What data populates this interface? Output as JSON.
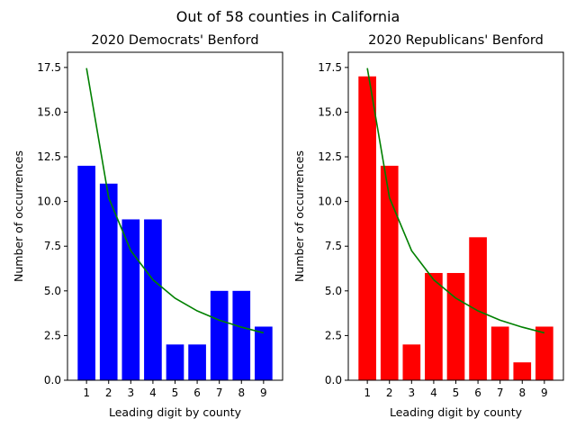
{
  "suptitle": "Out of 58 counties in California",
  "chart_data": [
    {
      "type": "bar",
      "title": "2020 Democrats' Benford",
      "xlabel": "Leading digit by county",
      "ylabel": "Number of occurrences",
      "categories": [
        "1",
        "2",
        "3",
        "4",
        "5",
        "6",
        "7",
        "8",
        "9"
      ],
      "series": [
        {
          "values": [
            12,
            11,
            9,
            9,
            2,
            2,
            5,
            5,
            3
          ],
          "color": "#0000ff",
          "kind": "bar"
        },
        {
          "values": [
            17.46,
            10.21,
            7.25,
            5.62,
            4.59,
            3.88,
            3.36,
            2.97,
            2.65
          ],
          "color": "#008000",
          "kind": "line"
        }
      ],
      "yticks": [
        "0.0",
        "2.5",
        "5.0",
        "7.5",
        "10.0",
        "12.5",
        "15.0",
        "17.5"
      ],
      "ylim": [
        0,
        18.35
      ],
      "grid": false
    },
    {
      "type": "bar",
      "title": "2020 Republicans' Benford",
      "xlabel": "Leading digit by county",
      "ylabel": "Number of occurrences",
      "categories": [
        "1",
        "2",
        "3",
        "4",
        "5",
        "6",
        "7",
        "8",
        "9"
      ],
      "series": [
        {
          "values": [
            17,
            12,
            2,
            6,
            6,
            8,
            3,
            1,
            3
          ],
          "color": "#ff0000",
          "kind": "bar"
        },
        {
          "values": [
            17.46,
            10.21,
            7.25,
            5.62,
            4.59,
            3.88,
            3.36,
            2.97,
            2.65
          ],
          "color": "#008000",
          "kind": "line"
        }
      ],
      "yticks": [
        "0.0",
        "2.5",
        "5.0",
        "7.5",
        "10.0",
        "12.5",
        "15.0",
        "17.5"
      ],
      "ylim": [
        0,
        18.35
      ],
      "grid": false
    }
  ]
}
